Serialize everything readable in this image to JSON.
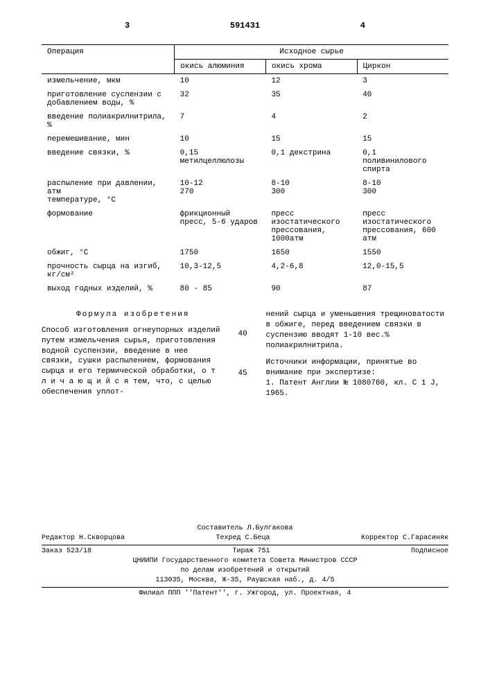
{
  "header": {
    "page_left": "3",
    "doc_number": "591431",
    "page_right": "4"
  },
  "table": {
    "col_op": "Операция",
    "col_group": "Исходное сырье",
    "materials": [
      "окись алюминия",
      "окись хрома",
      "Циркон"
    ],
    "rows": [
      {
        "op": "измельчение, мкм",
        "v": [
          "10",
          "12",
          "3"
        ]
      },
      {
        "op": "приготовление суспензии с добавлением воды, %",
        "v": [
          "32",
          "35",
          "40"
        ]
      },
      {
        "op": "введение полиакрилнитрила, %",
        "v": [
          "7",
          "4",
          "2"
        ]
      },
      {
        "op": "перемешивание, мин",
        "v": [
          "10",
          "15",
          "15"
        ]
      },
      {
        "op": "введение связки, %",
        "v": [
          "0,15 метилцеллюлозы",
          "0,1 декстрина",
          "0,1 поливинилового спирта"
        ]
      },
      {
        "op": "распыление при давлении, атм\nтемпературе, °С",
        "v": [
          "10-12\n270",
          "8-10\n300",
          "8-10\n300"
        ]
      },
      {
        "op": "формование",
        "v": [
          "фрикционный пресс, 5-6 ударов",
          "пресс изостатического прессования, 1000атм",
          "пресс изостатического прессования, 600 атм"
        ]
      },
      {
        "op": "обжиг, °С",
        "v": [
          "1750",
          "1650",
          "1550"
        ]
      },
      {
        "op": "прочность сырца на изгиб, кг/см²",
        "v": [
          "10,3-12,5",
          "4,2-6,8",
          "12,0-15,5"
        ]
      },
      {
        "op": "выход годных изделий, %",
        "v": [
          "80 - 85",
          "90",
          "87"
        ]
      }
    ]
  },
  "text": {
    "formula_title": "Формула изобретения",
    "left": "Способ изготовления огнеупорных изделий путем измельчения сырья, приготовления водной суспензии, введение в нее связки, сушки распылением, формования сырца и его термической обработки, о т л и ч а ю щ и й с я тем, что, с целью обеспечения уплот-",
    "right1": "нений сырца и уменьшения трещиноватости в обжиге, перед введением связки в суспензию вводят 1-10 вес.% полиакрилнитрила.",
    "right2_title": "Источники информации, принятые во внимание при экспертизе:",
    "right2": "1. Патент Англии № 1080760, кл. С 1 J, 1965.",
    "num40": "40",
    "num45": "45"
  },
  "footer": {
    "compiler": "Составитель Л.Булгакова",
    "editor": "Редактор Н.Скворцова",
    "techred": "Техред С.Беца",
    "corrector": "Корректор С.Гарасиняк",
    "order": "Заказ 523/18",
    "tirage": "Тираж 751",
    "subscription": "Подписное",
    "org1": "ЦНИИПИ Государственного комитета Совета Министров СССР",
    "org2": "по делам изобретений и открытий",
    "addr": "113035, Москва, Ж-35, Раушская наб., д. 4/5",
    "filial": "Филиал ППП ''Патент'', г. Ужгород, ул. Проектная, 4"
  }
}
